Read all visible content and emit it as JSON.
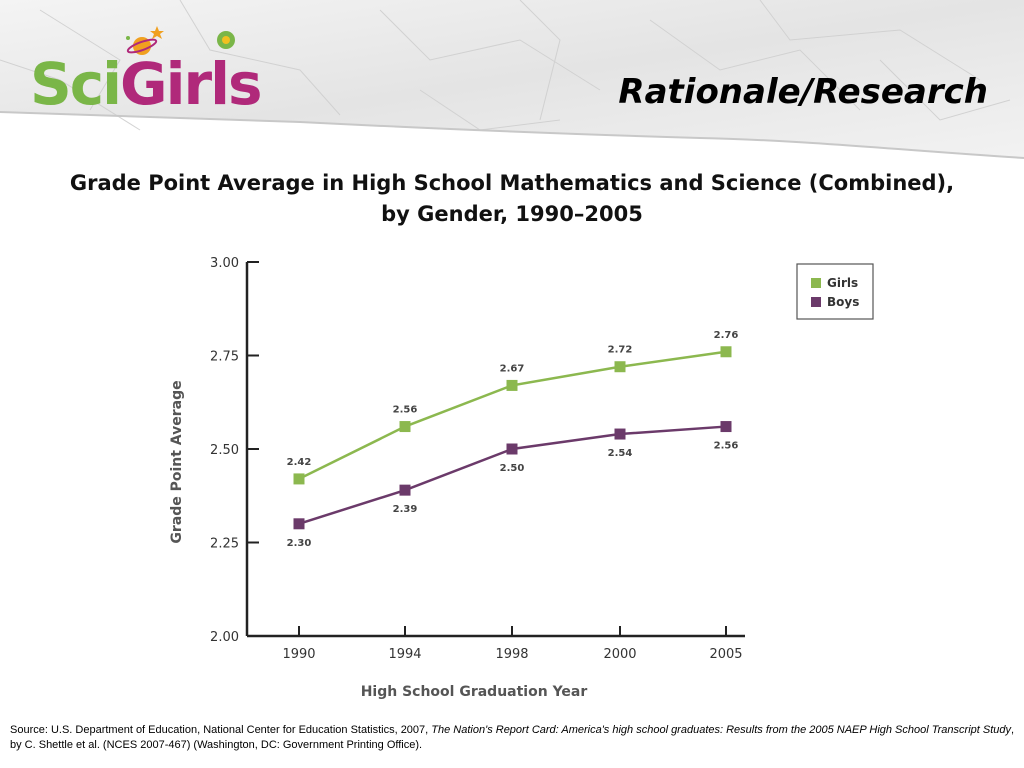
{
  "header": {
    "logo_text": "SciGirls",
    "slide_title": "Rationale/Research"
  },
  "colors": {
    "girls": "#8cb84f",
    "boys": "#6b3a6a",
    "logo_sci": "#7ab648",
    "logo_girls": "#b0297a"
  },
  "chart_data": {
    "type": "line",
    "title_line1": "Grade Point Average in High School Mathematics and Science (Combined),",
    "title_line2": "by Gender, 1990–2005",
    "xlabel": "High School Graduation Year",
    "ylabel": "Grade Point Average",
    "categories": [
      "1990",
      "1994",
      "1998",
      "2000",
      "2005"
    ],
    "ylim": [
      2.0,
      3.0
    ],
    "yticks": [
      "2.00",
      "2.25",
      "2.50",
      "2.75",
      "3.00"
    ],
    "series": [
      {
        "name": "Girls",
        "values": [
          2.42,
          2.56,
          2.67,
          2.72,
          2.76
        ],
        "labels": [
          "2.42",
          "2.56",
          "2.67",
          "2.72",
          "2.76"
        ]
      },
      {
        "name": "Boys",
        "values": [
          2.3,
          2.39,
          2.5,
          2.54,
          2.56
        ],
        "labels": [
          "2.30",
          "2.39",
          "2.50",
          "2.54",
          "2.56"
        ]
      }
    ],
    "legend_position": "top-right",
    "grid": false
  },
  "source": {
    "prefix": "Source: U.S. Department of Education, National Center for Education Statistics, 2007, ",
    "title_italic": "The Nation's Report Card: America's high school graduates: Results from the 2005 NAEP High School Transcript Study",
    "suffix": ", by C. Shettle et al. (NCES 2007-467) (Washington, DC: Government Printing Office)."
  }
}
